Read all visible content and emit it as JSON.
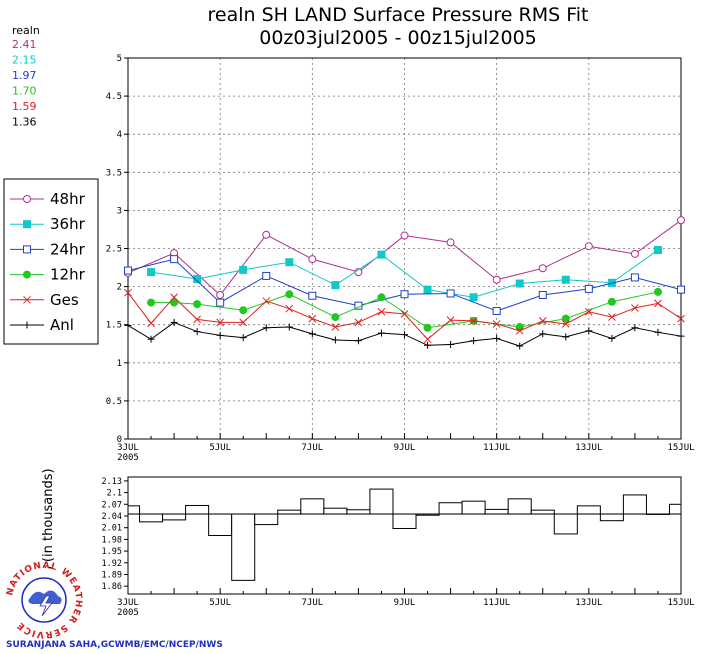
{
  "chart_data": [
    {
      "type": "line",
      "title": "realn SH LAND Surface Pressure RMS Fit",
      "subtitle": "00z03jul2005 - 00z15jul2005",
      "xlabel": "",
      "ylabel": "",
      "xlim": [
        0,
        12
      ],
      "ylim": [
        0,
        5
      ],
      "yticks": [
        "0",
        "0.5",
        "1",
        "1.5",
        "2",
        "2.5",
        "3",
        "3.5",
        "4",
        "4.5",
        "5"
      ],
      "xticks": [
        {
          "x": 0,
          "label": "3JUL",
          "sub": "2005"
        },
        {
          "x": 2,
          "label": "5JUL",
          "sub": ""
        },
        {
          "x": 4,
          "label": "7JUL",
          "sub": ""
        },
        {
          "x": 6,
          "label": "9JUL",
          "sub": ""
        },
        {
          "x": 8,
          "label": "11JUL",
          "sub": ""
        },
        {
          "x": 10,
          "label": "13JUL",
          "sub": ""
        },
        {
          "x": 12,
          "label": "15JUL",
          "sub": ""
        }
      ],
      "mean_header": "realn",
      "series": [
        {
          "name": "48hr",
          "color": "#b0308c",
          "marker": "circle-open",
          "mean": "2.41",
          "x": [
            0,
            1,
            2,
            3,
            4,
            5,
            6,
            7,
            8,
            9,
            10,
            11,
            12
          ],
          "values": [
            2.18,
            2.44,
            1.89,
            2.68,
            2.36,
            2.19,
            2.67,
            2.58,
            2.09,
            2.24,
            2.53,
            2.43,
            2.87
          ]
        },
        {
          "name": "36hr",
          "color": "#10c8c8",
          "marker": "square-filled",
          "mean": "2.15",
          "x": [
            0.5,
            1.5,
            2.5,
            3.5,
            4.5,
            5.5,
            6.5,
            7.5,
            8.5,
            9.5,
            10.5,
            11.5
          ],
          "values": [
            2.19,
            2.1,
            2.22,
            2.32,
            2.02,
            2.42,
            1.96,
            1.86,
            2.04,
            2.09,
            2.05,
            2.48
          ]
        },
        {
          "name": "24hr",
          "color": "#2040c8",
          "marker": "square-open",
          "mean": "1.97",
          "x": [
            0,
            1,
            2,
            3,
            4,
            5,
            6,
            7,
            8,
            9,
            10,
            11,
            12
          ],
          "values": [
            2.21,
            2.36,
            1.79,
            2.14,
            1.88,
            1.75,
            1.9,
            1.91,
            1.68,
            1.89,
            1.97,
            2.12,
            1.96
          ]
        },
        {
          "name": "12hr",
          "color": "#20c820",
          "marker": "circle-filled",
          "mean": "1.70",
          "x": [
            0.5,
            1.0,
            1.5,
            2.5,
            3.5,
            4.5,
            5.5,
            6.5,
            7.5,
            8.5,
            9.5,
            10.5,
            11.5
          ],
          "values": [
            1.79,
            1.79,
            1.77,
            1.69,
            1.9,
            1.6,
            1.86,
            1.46,
            1.55,
            1.47,
            1.58,
            1.8,
            1.93
          ]
        },
        {
          "name": "Ges",
          "color": "#e02020",
          "marker": "x",
          "mean": "1.59",
          "x": [
            0,
            0.5,
            1.0,
            1.5,
            2,
            2.5,
            3,
            3.5,
            4,
            4.5,
            5,
            5.5,
            6,
            6.5,
            7,
            7.5,
            8,
            8.5,
            9,
            9.5,
            10,
            10.5,
            11,
            11.5,
            12
          ],
          "values": [
            1.92,
            1.52,
            1.86,
            1.57,
            1.53,
            1.53,
            1.81,
            1.71,
            1.58,
            1.47,
            1.53,
            1.67,
            1.64,
            1.31,
            1.56,
            1.55,
            1.51,
            1.42,
            1.55,
            1.51,
            1.67,
            1.6,
            1.72,
            1.78,
            1.58
          ]
        },
        {
          "name": "Anl",
          "color": "#000000",
          "marker": "plus",
          "mean": "1.36",
          "x": [
            0,
            0.5,
            1.0,
            1.5,
            2,
            2.5,
            3,
            3.5,
            4,
            4.5,
            5,
            5.5,
            6,
            6.5,
            7,
            7.5,
            8,
            8.5,
            9,
            9.5,
            10,
            10.5,
            11,
            11.5,
            12
          ],
          "values": [
            1.49,
            1.31,
            1.53,
            1.41,
            1.36,
            1.33,
            1.46,
            1.47,
            1.38,
            1.3,
            1.29,
            1.39,
            1.37,
            1.23,
            1.24,
            1.29,
            1.32,
            1.22,
            1.38,
            1.34,
            1.42,
            1.32,
            1.46,
            1.4,
            1.35
          ]
        }
      ]
    },
    {
      "type": "bar",
      "title": "",
      "ylabel": "Counts (in thousands)",
      "xlim": [
        0,
        12
      ],
      "ylim": [
        1.84,
        2.14
      ],
      "baseline": 2.045,
      "yticks": [
        "1.86",
        "1.89",
        "1.92",
        "1.95",
        "1.98",
        "2.01",
        "2.04",
        "2.07",
        "2.1",
        "2.13"
      ],
      "xticks": [
        {
          "x": 0,
          "label": "3JUL",
          "sub": "2005"
        },
        {
          "x": 2,
          "label": "5JUL",
          "sub": ""
        },
        {
          "x": 4,
          "label": "7JUL",
          "sub": ""
        },
        {
          "x": 6,
          "label": "9JUL",
          "sub": ""
        },
        {
          "x": 8,
          "label": "11JUL",
          "sub": ""
        },
        {
          "x": 10,
          "label": "13JUL",
          "sub": ""
        },
        {
          "x": 12,
          "label": "15JUL",
          "sub": ""
        }
      ],
      "x": [
        0,
        0.5,
        1.0,
        1.5,
        2,
        2.5,
        3,
        3.5,
        4,
        4.5,
        5,
        5.5,
        6,
        6.5,
        7,
        7.5,
        8,
        8.5,
        9,
        9.5,
        10,
        10.5,
        11,
        11.5,
        12
      ],
      "values": [
        2.066,
        2.025,
        2.03,
        2.067,
        1.99,
        1.875,
        2.018,
        2.055,
        2.084,
        2.06,
        2.056,
        2.109,
        2.008,
        2.042,
        2.074,
        2.078,
        2.057,
        2.084,
        2.055,
        1.994,
        2.066,
        2.028,
        2.094,
        2.044,
        2.07
      ]
    }
  ],
  "logo": {
    "text": "NATIONAL WEATHER SERVICE"
  },
  "credit": "SURANJANA SAHA,GCWMB/EMC/NCEP/NWS"
}
